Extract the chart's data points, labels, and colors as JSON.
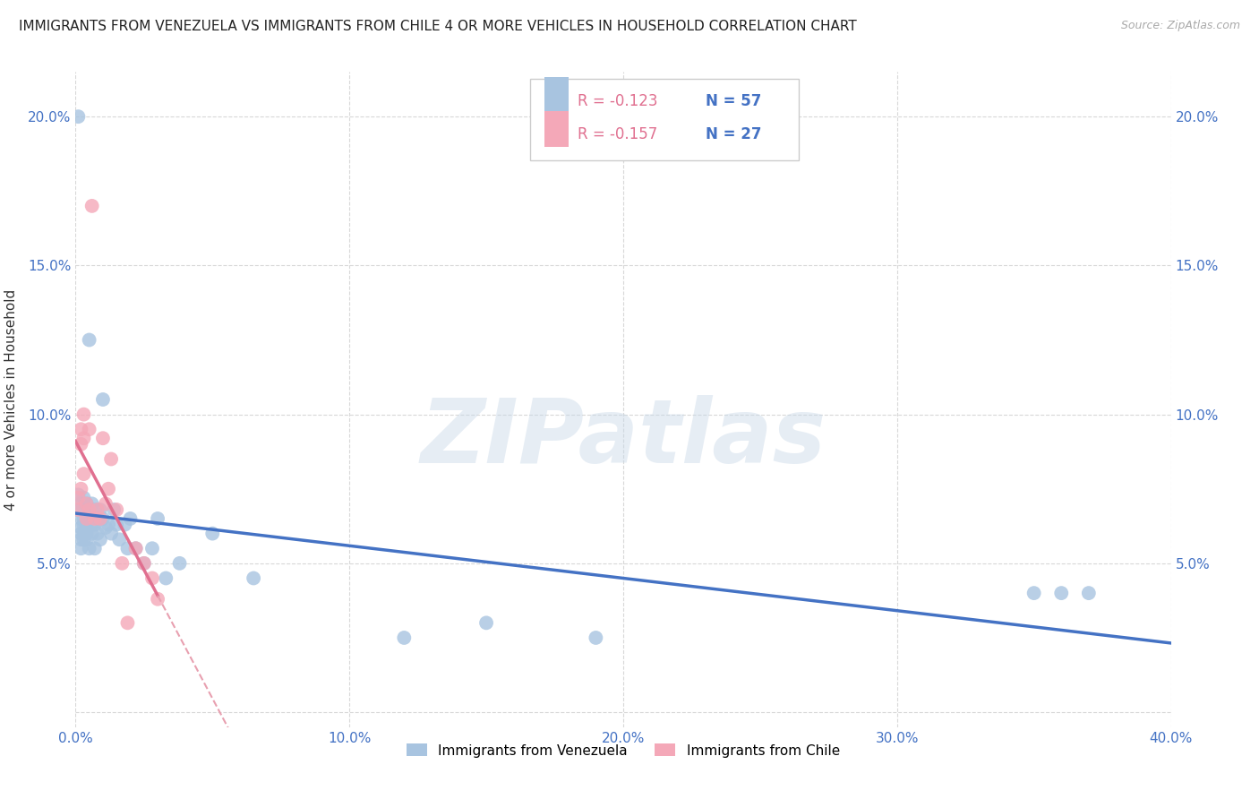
{
  "title": "IMMIGRANTS FROM VENEZUELA VS IMMIGRANTS FROM CHILE 4 OR MORE VEHICLES IN HOUSEHOLD CORRELATION CHART",
  "source": "Source: ZipAtlas.com",
  "ylabel": "4 or more Vehicles in Household",
  "xlim": [
    0.0,
    0.4
  ],
  "ylim": [
    -0.005,
    0.215
  ],
  "xticks": [
    0.0,
    0.1,
    0.2,
    0.3,
    0.4
  ],
  "xtick_labels": [
    "0.0%",
    "10.0%",
    "20.0%",
    "30.0%",
    "40.0%"
  ],
  "yticks_left": [
    0.0,
    0.05,
    0.1,
    0.15,
    0.2
  ],
  "ytick_labels_left": [
    "",
    "5.0%",
    "10.0%",
    "15.0%",
    "20.0%"
  ],
  "yticks_right": [
    0.05,
    0.1,
    0.15,
    0.2
  ],
  "ytick_labels_right": [
    "5.0%",
    "10.0%",
    "15.0%",
    "20.0%"
  ],
  "background_color": "#ffffff",
  "grid_color": "#d8d8d8",
  "venezuela_color": "#a8c4e0",
  "chile_color": "#f4a8b8",
  "venezuela_line_color": "#4472c4",
  "chile_line_solid_color": "#e07090",
  "chile_line_dash_color": "#e8a0b0",
  "legend_r_venezuela": "R = -0.123",
  "legend_n_venezuela": "N = 57",
  "legend_r_chile": "R = -0.157",
  "legend_n_chile": "N = 27",
  "watermark": "ZIPatlas",
  "venezuela_x": [
    0.001,
    0.001,
    0.001,
    0.002,
    0.002,
    0.002,
    0.002,
    0.002,
    0.002,
    0.003,
    0.003,
    0.003,
    0.003,
    0.003,
    0.004,
    0.004,
    0.004,
    0.004,
    0.005,
    0.005,
    0.005,
    0.005,
    0.006,
    0.006,
    0.006,
    0.007,
    0.007,
    0.007,
    0.008,
    0.008,
    0.009,
    0.009,
    0.01,
    0.01,
    0.011,
    0.012,
    0.013,
    0.014,
    0.015,
    0.016,
    0.018,
    0.019,
    0.02,
    0.022,
    0.025,
    0.028,
    0.03,
    0.033,
    0.038,
    0.05,
    0.065,
    0.12,
    0.15,
    0.19,
    0.35,
    0.36,
    0.37
  ],
  "venezuela_y": [
    0.2,
    0.073,
    0.068,
    0.07,
    0.065,
    0.062,
    0.06,
    0.058,
    0.055,
    0.072,
    0.065,
    0.063,
    0.06,
    0.058,
    0.07,
    0.063,
    0.06,
    0.058,
    0.068,
    0.125,
    0.065,
    0.055,
    0.07,
    0.063,
    0.06,
    0.068,
    0.063,
    0.055,
    0.065,
    0.06,
    0.068,
    0.058,
    0.105,
    0.065,
    0.062,
    0.063,
    0.06,
    0.068,
    0.063,
    0.058,
    0.063,
    0.055,
    0.065,
    0.055,
    0.05,
    0.055,
    0.065,
    0.045,
    0.05,
    0.06,
    0.045,
    0.025,
    0.03,
    0.025,
    0.04,
    0.04,
    0.04
  ],
  "chile_x": [
    0.001,
    0.001,
    0.002,
    0.002,
    0.002,
    0.003,
    0.003,
    0.003,
    0.004,
    0.004,
    0.005,
    0.005,
    0.006,
    0.007,
    0.008,
    0.009,
    0.01,
    0.011,
    0.012,
    0.013,
    0.015,
    0.017,
    0.019,
    0.022,
    0.025,
    0.028,
    0.03
  ],
  "chile_y": [
    0.072,
    0.068,
    0.075,
    0.095,
    0.09,
    0.08,
    0.092,
    0.1,
    0.07,
    0.065,
    0.068,
    0.095,
    0.17,
    0.065,
    0.068,
    0.065,
    0.092,
    0.07,
    0.075,
    0.085,
    0.068,
    0.05,
    0.03,
    0.055,
    0.05,
    0.045,
    0.038
  ]
}
